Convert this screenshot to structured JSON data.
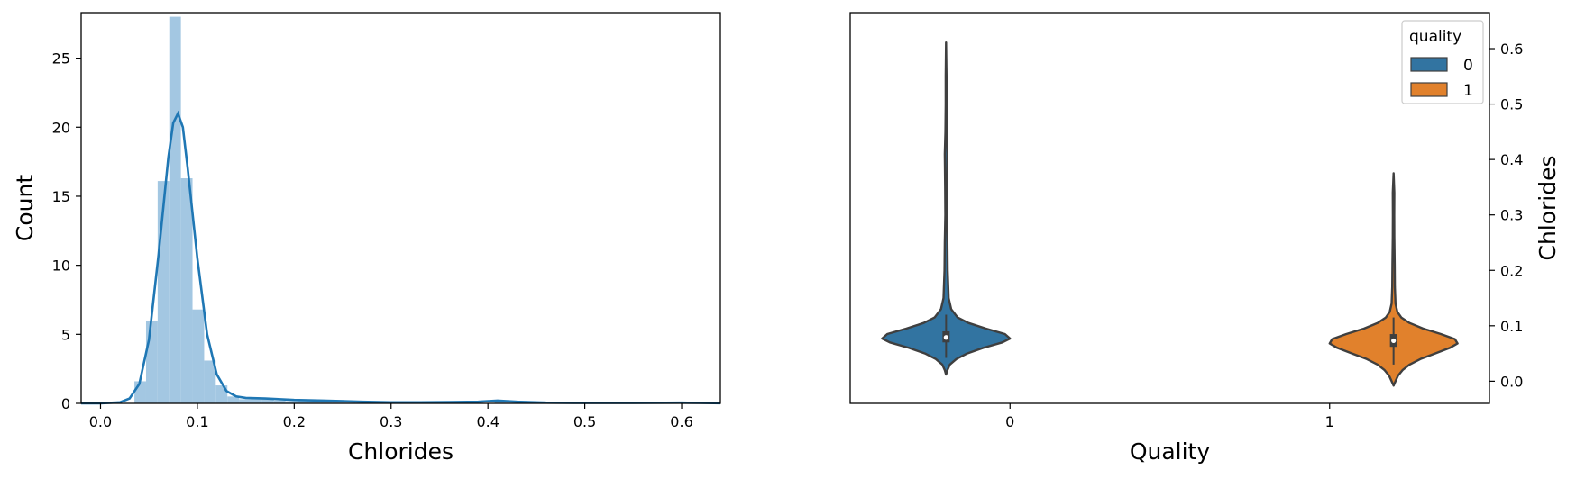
{
  "chart_data": [
    {
      "type": "bar",
      "subtype": "histogram-with-kde",
      "xlabel": "Chlorides",
      "ylabel": "Count",
      "xlim": [
        -0.02,
        0.64
      ],
      "ylim": [
        0,
        28.3
      ],
      "xticks": [
        "0.0",
        "0.1",
        "0.2",
        "0.3",
        "0.4",
        "0.5",
        "0.6"
      ],
      "yticks": [
        "0",
        "5",
        "10",
        "15",
        "20",
        "25"
      ],
      "grid": false,
      "colors": {
        "bars": "#a3c7e2",
        "kde": "#1f77b4"
      },
      "bins": [
        {
          "x0": 0.035,
          "x1": 0.047,
          "count": 1.6
        },
        {
          "x0": 0.047,
          "x1": 0.059,
          "count": 6.0
        },
        {
          "x0": 0.059,
          "x1": 0.071,
          "count": 16.1
        },
        {
          "x0": 0.071,
          "x1": 0.083,
          "count": 28.0
        },
        {
          "x0": 0.083,
          "x1": 0.095,
          "count": 16.3
        },
        {
          "x0": 0.095,
          "x1": 0.107,
          "count": 6.8
        },
        {
          "x0": 0.107,
          "x1": 0.119,
          "count": 3.1
        },
        {
          "x0": 0.119,
          "x1": 0.131,
          "count": 1.3
        },
        {
          "x0": 0.131,
          "x1": 0.143,
          "count": 0.5
        },
        {
          "x0": 0.143,
          "x1": 0.155,
          "count": 0.3
        },
        {
          "x0": 0.155,
          "x1": 0.167,
          "count": 0.35
        },
        {
          "x0": 0.167,
          "x1": 0.179,
          "count": 0.35
        },
        {
          "x0": 0.179,
          "x1": 0.191,
          "count": 0.2
        },
        {
          "x0": 0.191,
          "x1": 0.203,
          "count": 0.15
        },
        {
          "x0": 0.203,
          "x1": 0.215,
          "count": 0.2
        },
        {
          "x0": 0.215,
          "x1": 0.227,
          "count": 0.25
        },
        {
          "x0": 0.227,
          "x1": 0.239,
          "count": 0.15
        },
        {
          "x0": 0.239,
          "x1": 0.251,
          "count": 0.1
        },
        {
          "x0": 0.251,
          "x1": 0.263,
          "count": 0.1
        },
        {
          "x0": 0.263,
          "x1": 0.275,
          "count": 0.05
        },
        {
          "x0": 0.335,
          "x1": 0.347,
          "count": 0.1
        },
        {
          "x0": 0.347,
          "x1": 0.359,
          "count": 0.1
        },
        {
          "x0": 0.359,
          "x1": 0.371,
          "count": 0.08
        },
        {
          "x0": 0.371,
          "x1": 0.383,
          "count": 0.1
        },
        {
          "x0": 0.383,
          "x1": 0.395,
          "count": 0.05
        },
        {
          "x0": 0.407,
          "x1": 0.419,
          "count": 0.2
        },
        {
          "x0": 0.419,
          "x1": 0.431,
          "count": 0.1
        },
        {
          "x0": 0.599,
          "x1": 0.611,
          "count": 0.05
        }
      ],
      "kde": {
        "x": [
          -0.02,
          0.0,
          0.02,
          0.03,
          0.04,
          0.05,
          0.06,
          0.07,
          0.075,
          0.08,
          0.085,
          0.09,
          0.1,
          0.11,
          0.12,
          0.13,
          0.14,
          0.15,
          0.17,
          0.2,
          0.23,
          0.27,
          0.3,
          0.33,
          0.36,
          0.39,
          0.41,
          0.43,
          0.46,
          0.5,
          0.55,
          0.6,
          0.62,
          0.64
        ],
        "y": [
          0.0,
          0.0,
          0.08,
          0.35,
          1.4,
          4.6,
          10.8,
          17.8,
          20.3,
          21.0,
          20.0,
          17.0,
          10.5,
          5.0,
          2.1,
          0.9,
          0.5,
          0.4,
          0.35,
          0.25,
          0.2,
          0.12,
          0.08,
          0.08,
          0.1,
          0.12,
          0.2,
          0.12,
          0.05,
          0.03,
          0.03,
          0.05,
          0.03,
          0.01
        ]
      }
    },
    {
      "type": "violin",
      "xlabel": "Quality",
      "ylabel": "Chlorides",
      "categories": [
        "0",
        "1"
      ],
      "ylim": [
        -0.04,
        0.665
      ],
      "yticks": [
        "0.0",
        "0.1",
        "0.2",
        "0.3",
        "0.4",
        "0.5",
        "0.6"
      ],
      "grid": false,
      "legend": {
        "title": "quality",
        "position": "top-right",
        "entries": [
          {
            "label": "0",
            "color": "#3274a1"
          },
          {
            "label": "1",
            "color": "#e1812c"
          }
        ]
      },
      "series": [
        {
          "category": "0",
          "color": "#3274a1",
          "min": 0.012,
          "max": 0.611,
          "q1": 0.07,
          "median": 0.079,
          "q3": 0.09,
          "whisker_low": 0.042,
          "whisker_high": 0.12,
          "profile": [
            [
              0.012,
              0.0
            ],
            [
              0.02,
              0.02
            ],
            [
              0.03,
              0.06
            ],
            [
              0.04,
              0.16
            ],
            [
              0.05,
              0.33
            ],
            [
              0.06,
              0.58
            ],
            [
              0.07,
              0.88
            ],
            [
              0.077,
              1.0
            ],
            [
              0.085,
              0.92
            ],
            [
              0.095,
              0.62
            ],
            [
              0.105,
              0.35
            ],
            [
              0.115,
              0.18
            ],
            [
              0.13,
              0.08
            ],
            [
              0.15,
              0.04
            ],
            [
              0.2,
              0.025
            ],
            [
              0.25,
              0.02
            ],
            [
              0.3,
              0.012
            ],
            [
              0.35,
              0.015
            ],
            [
              0.41,
              0.02
            ],
            [
              0.45,
              0.01
            ],
            [
              0.5,
              0.006
            ],
            [
              0.55,
              0.006
            ],
            [
              0.611,
              0.0
            ]
          ]
        },
        {
          "category": "1",
          "color": "#e1812c",
          "min": -0.008,
          "max": 0.375,
          "q1": 0.062,
          "median": 0.073,
          "q3": 0.085,
          "whisker_low": 0.03,
          "whisker_high": 0.115,
          "profile": [
            [
              -0.008,
              0.0
            ],
            [
              0.0,
              0.03
            ],
            [
              0.01,
              0.07
            ],
            [
              0.02,
              0.14
            ],
            [
              0.03,
              0.25
            ],
            [
              0.04,
              0.42
            ],
            [
              0.05,
              0.65
            ],
            [
              0.06,
              0.88
            ],
            [
              0.068,
              1.0
            ],
            [
              0.076,
              0.96
            ],
            [
              0.085,
              0.74
            ],
            [
              0.095,
              0.46
            ],
            [
              0.105,
              0.25
            ],
            [
              0.115,
              0.12
            ],
            [
              0.125,
              0.06
            ],
            [
              0.14,
              0.03
            ],
            [
              0.17,
              0.02
            ],
            [
              0.21,
              0.018
            ],
            [
              0.26,
              0.012
            ],
            [
              0.3,
              0.01
            ],
            [
              0.34,
              0.012
            ],
            [
              0.375,
              0.0
            ]
          ]
        }
      ]
    }
  ]
}
